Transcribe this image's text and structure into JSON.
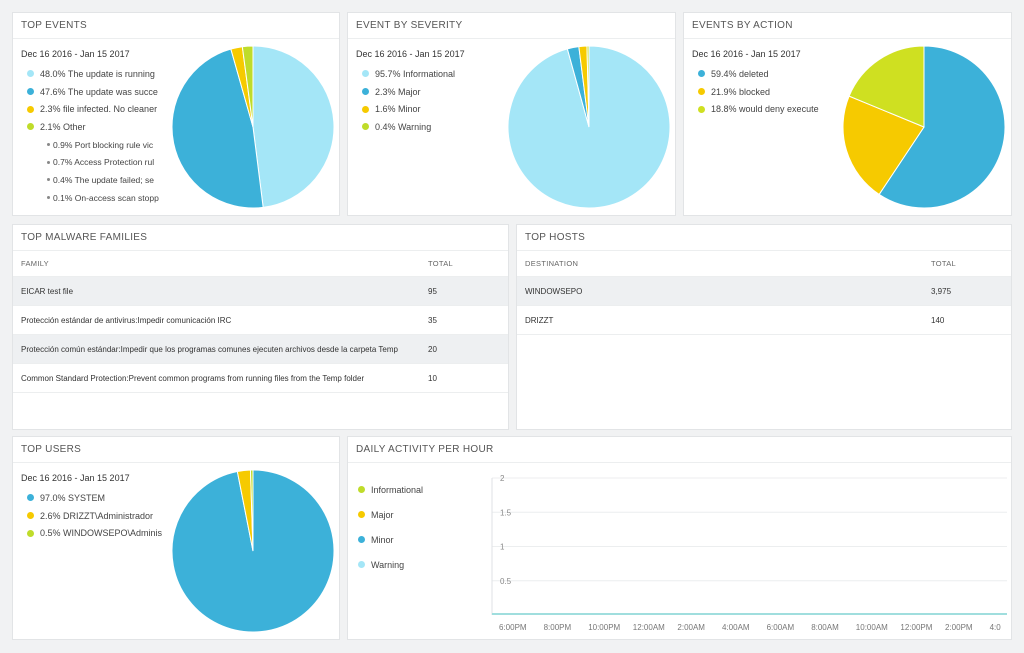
{
  "top_events": {
    "title": "TOP EVENTS",
    "date_range": "Dec 16 2016 - Jan 15 2017",
    "items": [
      {
        "label": "48.0% The update is running",
        "color": "#a4e6f7"
      },
      {
        "label": "47.6% The update was succe",
        "color": "#3cb1d9"
      },
      {
        "label": "2.3% file infected. No cleaner",
        "color": "#f6ca00"
      },
      {
        "label": "2.1% Other",
        "color": "#bfdc2a"
      }
    ],
    "sub_items": [
      {
        "label": "0.9% Port blocking rule vic"
      },
      {
        "label": "0.7% Access Protection rul"
      },
      {
        "label": "0.4% The update failed; se"
      },
      {
        "label": "0.1% On-access scan stopp"
      }
    ]
  },
  "event_by_severity": {
    "title": "EVENT BY SEVERITY",
    "date_range": "Dec 16 2016 - Jan 15 2017",
    "items": [
      {
        "label": "95.7% Informational",
        "color": "#a4e6f7"
      },
      {
        "label": "2.3% Major",
        "color": "#3cb1d9"
      },
      {
        "label": "1.6% Minor",
        "color": "#f6ca00"
      },
      {
        "label": "0.4% Warning",
        "color": "#bfdc2a"
      }
    ]
  },
  "events_by_action": {
    "title": "EVENTS BY ACTION",
    "date_range": "Dec 16 2016 - Jan 15 2017",
    "items": [
      {
        "label": "59.4% deleted",
        "color": "#3cb1d9"
      },
      {
        "label": "21.9% blocked",
        "color": "#f6ca00"
      },
      {
        "label": "18.8% would deny execute",
        "color": "#cfe021"
      }
    ]
  },
  "top_malware_families": {
    "title": "TOP MALWARE FAMILIES",
    "columns": [
      "FAMILY",
      "TOTAL"
    ],
    "rows": [
      {
        "family": "EICAR test file",
        "total": "95"
      },
      {
        "family": "Protección estándar de antivirus:Impedir comunicación IRC",
        "total": "35"
      },
      {
        "family": "Protección común estándar:Impedir que los programas comunes ejecuten archivos desde la carpeta Temp",
        "total": "20"
      },
      {
        "family": "Common Standard Protection:Prevent common programs from running files from the Temp folder",
        "total": "10"
      }
    ]
  },
  "top_hosts": {
    "title": "TOP HOSTS",
    "columns": [
      "DESTINATION",
      "TOTAL"
    ],
    "rows": [
      {
        "destination": "WINDOWSEPO",
        "total": "3,975"
      },
      {
        "destination": "DRIZZT",
        "total": "140"
      }
    ]
  },
  "top_users": {
    "title": "TOP USERS",
    "date_range": "Dec 16 2016 - Jan 15 2017",
    "items": [
      {
        "label": "97.0% SYSTEM",
        "color": "#3cb1d9"
      },
      {
        "label": "2.6% DRIZZT\\Administrador",
        "color": "#f6ca00"
      },
      {
        "label": "0.5% WINDOWSEPO\\Adminis",
        "color": "#bfdc2a"
      }
    ]
  },
  "daily_activity": {
    "title": "DAILY ACTIVITY PER HOUR",
    "legend": [
      {
        "label": "Informational",
        "color": "#bfdc2a"
      },
      {
        "label": "Major",
        "color": "#f6ca00"
      },
      {
        "label": "Minor",
        "color": "#3cb1d9"
      },
      {
        "label": "Warning",
        "color": "#a4e6f7"
      }
    ]
  },
  "chart_data": [
    {
      "type": "pie",
      "title": "TOP EVENTS",
      "labels": [
        "The update is running",
        "The update was succe",
        "file infected. No cleaner",
        "Other"
      ],
      "values": [
        48.0,
        47.6,
        2.3,
        2.1
      ],
      "colors": [
        "#a4e6f7",
        "#3cb1d9",
        "#f6ca00",
        "#bfdc2a"
      ]
    },
    {
      "type": "pie",
      "title": "EVENT BY SEVERITY",
      "labels": [
        "Informational",
        "Major",
        "Minor",
        "Warning"
      ],
      "values": [
        95.7,
        2.3,
        1.6,
        0.4
      ],
      "colors": [
        "#a4e6f7",
        "#3cb1d9",
        "#f6ca00",
        "#bfdc2a"
      ]
    },
    {
      "type": "pie",
      "title": "EVENTS BY ACTION",
      "labels": [
        "deleted",
        "blocked",
        "would deny execute"
      ],
      "values": [
        59.4,
        21.9,
        18.8
      ],
      "colors": [
        "#3cb1d9",
        "#f6ca00",
        "#cfe021"
      ]
    },
    {
      "type": "pie",
      "title": "TOP USERS",
      "labels": [
        "SYSTEM",
        "DRIZZT\\Administrador",
        "WINDOWSEPO\\Adminis"
      ],
      "values": [
        97.0,
        2.6,
        0.5
      ],
      "colors": [
        "#3cb1d9",
        "#f6ca00",
        "#bfdc2a"
      ]
    },
    {
      "type": "line",
      "title": "DAILY ACTIVITY PER HOUR",
      "x_ticks": [
        "6:00PM",
        "8:00PM",
        "10:00PM",
        "12:00AM",
        "2:00AM",
        "4:00AM",
        "6:00AM",
        "8:00AM",
        "10:00AM",
        "12:00PM",
        "2:00PM",
        "4:0"
      ],
      "y_ticks": [
        "2",
        "1.5",
        "1",
        "0.5"
      ],
      "ylim": [
        0,
        2
      ],
      "grid": true,
      "series": [
        {
          "name": "Informational",
          "values": [
            0,
            0,
            0,
            0,
            0,
            0,
            0,
            0,
            0,
            0,
            0,
            0
          ]
        },
        {
          "name": "Major",
          "values": [
            0,
            0,
            0,
            0,
            0,
            0,
            0,
            0,
            0,
            0,
            0,
            0
          ]
        },
        {
          "name": "Minor",
          "values": [
            0,
            0,
            0,
            0,
            0,
            0,
            0,
            0,
            0,
            0,
            0,
            0
          ]
        },
        {
          "name": "Warning",
          "values": [
            0,
            0,
            0,
            0,
            0,
            0,
            0,
            0,
            0,
            0,
            0,
            0
          ]
        }
      ]
    }
  ]
}
